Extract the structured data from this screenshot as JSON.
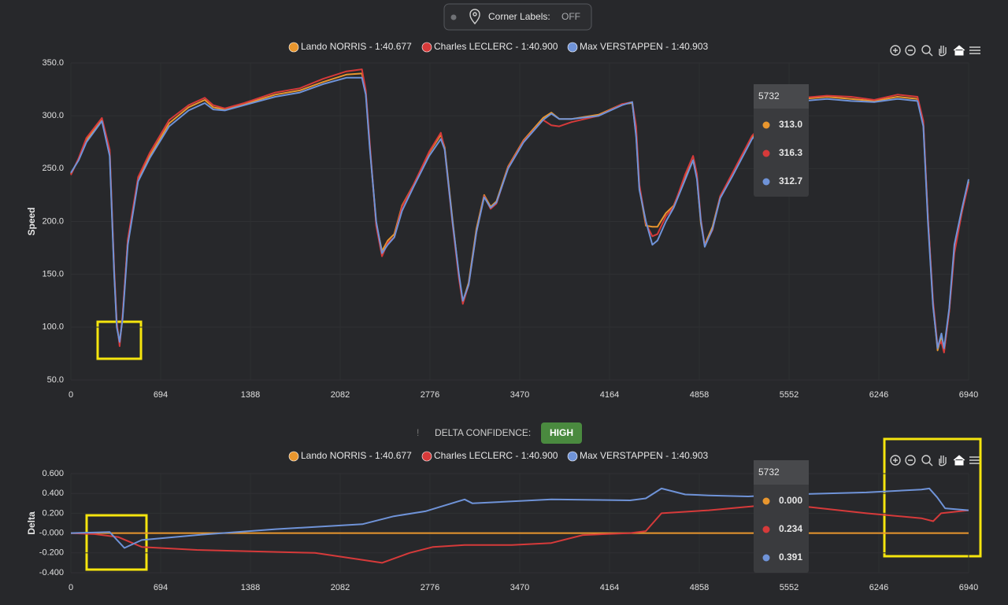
{
  "controls": {
    "corner_labels": {
      "label": "Corner Labels:",
      "state": "OFF"
    },
    "delta_confidence": {
      "icon": "!",
      "label": "DELTA CONFIDENCE:",
      "level": "HIGH"
    }
  },
  "chart_data": [
    {
      "type": "line",
      "ylabel": "Speed",
      "xlim": [
        0,
        6940
      ],
      "xticks": [
        0,
        694,
        1388,
        2082,
        2776,
        3470,
        4164,
        4858,
        5552,
        6246,
        6940
      ],
      "ylim": [
        50,
        350
      ],
      "yticks": [
        {
          "value": 50,
          "label": "50.0"
        },
        {
          "value": 100,
          "label": "100.0"
        },
        {
          "value": 150,
          "label": "150.0"
        },
        {
          "value": 200,
          "label": "200.0"
        },
        {
          "value": 250,
          "label": "250.0"
        },
        {
          "value": 300,
          "label": "300.0"
        },
        {
          "value": 350,
          "label": "350.0"
        }
      ],
      "grid": true,
      "x": [
        0,
        60,
        120,
        240,
        300,
        335,
        355,
        377,
        400,
        440,
        520,
        610,
        760,
        910,
        1035,
        1100,
        1190,
        1340,
        1580,
        1770,
        1950,
        2130,
        2250,
        2280,
        2310,
        2360,
        2405,
        2450,
        2500,
        2560,
        2650,
        2770,
        2860,
        2890,
        2950,
        3000,
        3030,
        3075,
        3135,
        3195,
        3245,
        3290,
        3380,
        3500,
        3650,
        3715,
        3775,
        3870,
        4080,
        4260,
        4340,
        4370,
        4395,
        4445,
        4495,
        4535,
        4600,
        4660,
        4750,
        4810,
        4840,
        4870,
        4900,
        4960,
        5020,
        5115,
        5265,
        5480,
        5660,
        5845,
        6030,
        6210,
        6390,
        6545,
        6590,
        6625,
        6665,
        6700,
        6730,
        6750,
        6790,
        6830,
        6890,
        6940
      ],
      "series": [
        {
          "name": "Lando NORRIS - 1:40.677",
          "color": "#e8962e",
          "values": [
            245,
            259,
            277,
            297,
            265,
            152,
            102,
            85,
            110,
            182,
            240,
            262,
            293,
            308,
            315,
            308,
            306,
            311,
            320,
            324,
            332,
            339,
            340,
            322,
            272,
            198,
            172,
            182,
            188,
            215,
            235,
            265,
            282,
            270,
            202,
            148,
            124,
            142,
            193,
            225,
            214,
            219,
            252,
            277,
            298,
            303,
            297,
            297,
            301,
            311,
            312,
            282,
            232,
            196,
            195,
            195,
            208,
            215,
            242,
            258,
            242,
            198,
            178,
            195,
            224,
            245,
            280,
            307,
            316,
            318,
            316,
            314,
            318,
            316,
            292,
            204,
            122,
            78,
            92,
            77,
            116,
            175,
            210,
            238
          ]
        },
        {
          "name": "Charles LECLERC - 1:40.900",
          "color": "#d63a3a",
          "values": [
            244,
            260,
            279,
            298,
            268,
            155,
            105,
            82,
            112,
            183,
            242,
            265,
            296,
            310,
            317,
            310,
            307,
            312,
            322,
            326,
            335,
            342,
            344,
            324,
            275,
            196,
            167,
            180,
            185,
            214,
            235,
            266,
            284,
            268,
            198,
            146,
            122,
            140,
            190,
            224,
            212,
            217,
            251,
            276,
            296,
            291,
            290,
            294,
            300,
            311,
            313,
            290,
            235,
            198,
            186,
            188,
            205,
            214,
            245,
            262,
            245,
            202,
            177,
            192,
            224,
            246,
            281,
            309,
            317,
            319,
            318,
            315,
            320,
            318,
            295,
            205,
            125,
            82,
            86,
            76,
            115,
            170,
            210,
            236
          ]
        },
        {
          "name": "Max VERSTAPPEN - 1:40.903",
          "color": "#6f93d8",
          "values": [
            246,
            258,
            275,
            295,
            262,
            150,
            100,
            86,
            108,
            178,
            238,
            260,
            290,
            305,
            312,
            306,
            305,
            310,
            318,
            322,
            330,
            336,
            336,
            320,
            270,
            200,
            170,
            178,
            185,
            210,
            233,
            262,
            278,
            268,
            200,
            150,
            125,
            140,
            190,
            223,
            213,
            218,
            250,
            275,
            296,
            302,
            297,
            297,
            300,
            310,
            313,
            280,
            230,
            200,
            178,
            182,
            200,
            213,
            240,
            258,
            240,
            200,
            176,
            193,
            222,
            243,
            278,
            305,
            314,
            316,
            314,
            313,
            316,
            314,
            290,
            200,
            120,
            80,
            94,
            80,
            118,
            178,
            213,
            240
          ]
        }
      ],
      "tooltip": {
        "title": "5732",
        "values": [
          "313.0",
          "316.3",
          "312.7"
        ]
      }
    },
    {
      "type": "line",
      "ylabel": "Delta",
      "xlim": [
        0,
        6940
      ],
      "xticks": [
        0,
        694,
        1388,
        2082,
        2776,
        3470,
        4164,
        4858,
        5552,
        6246,
        6940
      ],
      "ylim": [
        -0.4,
        0.6
      ],
      "yticks": [
        {
          "value": -0.4,
          "label": "-0.400"
        },
        {
          "value": -0.2,
          "label": "-0.200"
        },
        {
          "value": 0,
          "label": "-0.000"
        },
        {
          "value": 0.2,
          "label": "0.200"
        },
        {
          "value": 0.4,
          "label": "0.400"
        },
        {
          "value": 0.6,
          "label": "0.600"
        }
      ],
      "grid": true,
      "series": [
        {
          "name": "Lando NORRIS - 1:40.677",
          "color": "#e8962e",
          "x": [
            0,
            6940
          ],
          "values": [
            0,
            0
          ]
        },
        {
          "name": "Charles LECLERC - 1:40.900",
          "color": "#d63a3a",
          "x": [
            0,
            183,
            365,
            548,
            974,
            1887,
            2253,
            2405,
            2618,
            2800,
            3044,
            3409,
            3714,
            3957,
            4323,
            4444,
            4566,
            4931,
            5357,
            5662,
            6149,
            6575,
            6666,
            6727,
            6940
          ],
          "values": [
            0,
            -0.01,
            -0.04,
            -0.14,
            -0.17,
            -0.2,
            -0.27,
            -0.3,
            -0.2,
            -0.14,
            -0.12,
            -0.12,
            -0.1,
            -0.02,
            0,
            0.02,
            0.2,
            0.23,
            0.28,
            0.27,
            0.2,
            0.15,
            0.12,
            0.2,
            0.23
          ]
        },
        {
          "name": "Max VERSTAPPEN - 1:40.903",
          "color": "#6f93d8",
          "x": [
            0,
            300,
            414,
            548,
            974,
            1583,
            2253,
            2496,
            2740,
            3044,
            3105,
            3714,
            4323,
            4444,
            4566,
            4749,
            4931,
            5236,
            5540,
            6149,
            6575,
            6636,
            6697,
            6758,
            6940
          ],
          "values": [
            0,
            0.01,
            -0.15,
            -0.07,
            -0.02,
            0.04,
            0.09,
            0.17,
            0.22,
            0.34,
            0.3,
            0.34,
            0.33,
            0.35,
            0.45,
            0.39,
            0.38,
            0.37,
            0.39,
            0.41,
            0.44,
            0.45,
            0.36,
            0.25,
            0.23
          ]
        }
      ],
      "tooltip": {
        "title": "5732",
        "values": [
          "0.000",
          "0.234",
          "0.391"
        ]
      }
    }
  ]
}
